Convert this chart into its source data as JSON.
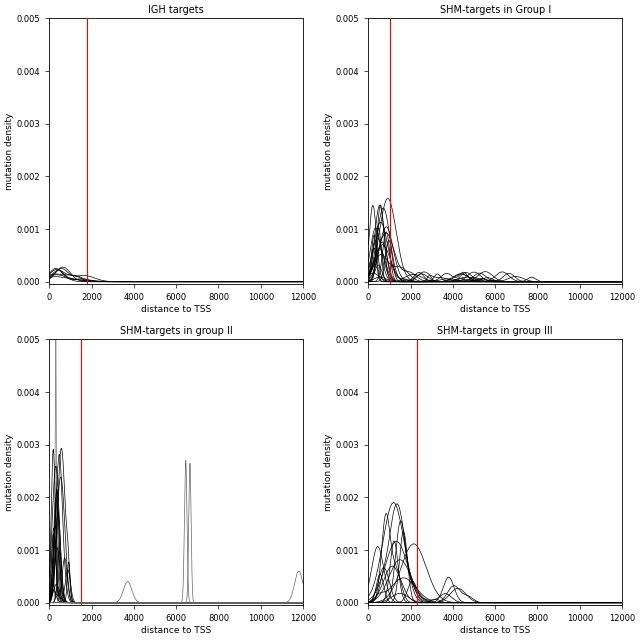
{
  "titles": [
    "IGH targets",
    "SHM-targets in Group I",
    "SHM-targets in group II",
    "SHM-targets in group III"
  ],
  "xlabel": "distance to TSS",
  "ylabel": "mutation density",
  "xlim": [
    0,
    12000
  ],
  "ylim": [
    -5e-05,
    0.005
  ],
  "yticks": [
    0.0,
    0.001,
    0.002,
    0.003,
    0.004,
    0.005
  ],
  "xticks": [
    0,
    2000,
    4000,
    6000,
    8000,
    10000,
    12000
  ],
  "red_lines": [
    1800,
    1000,
    1500,
    2300
  ],
  "background_color": "#ffffff",
  "line_color": "#000000",
  "red_color": "#ff0000",
  "gray_color": "#888888",
  "panel1_n": 8,
  "panel2_n": 22,
  "panel3_n": 18,
  "panel4_n": 16
}
